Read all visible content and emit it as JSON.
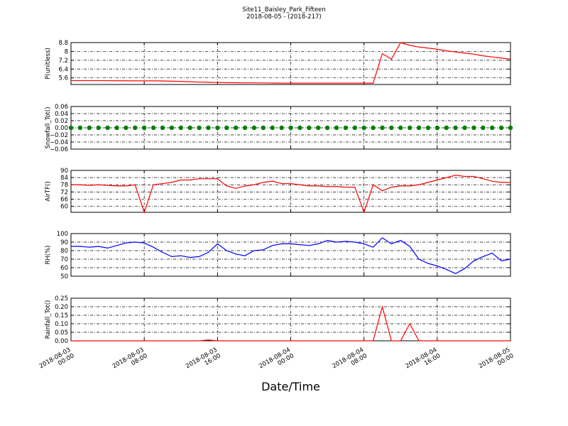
{
  "title": "Site11_Baisley_Park_Fifteen",
  "subtitle": "2018-08-05 - (2018-217)",
  "chart_data": [
    {
      "type": "line",
      "ylabel": "P(unitless)",
      "color": "#ff0000",
      "x": [
        "2018-08-03 00:00",
        "2018-08-03 01:00",
        "2018-08-03 02:00",
        "2018-08-03 03:00",
        "2018-08-03 04:00",
        "2018-08-03 05:00",
        "2018-08-03 06:00",
        "2018-08-03 07:00",
        "2018-08-03 08:00",
        "2018-08-03 09:00",
        "2018-08-03 10:00",
        "2018-08-03 11:00",
        "2018-08-03 12:00",
        "2018-08-03 13:00",
        "2018-08-03 14:00",
        "2018-08-03 15:00",
        "2018-08-03 16:00",
        "2018-08-03 17:00",
        "2018-08-03 18:00",
        "2018-08-03 19:00",
        "2018-08-03 20:00",
        "2018-08-03 21:00",
        "2018-08-03 22:00",
        "2018-08-03 23:00",
        "2018-08-04 00:00",
        "2018-08-04 01:00",
        "2018-08-04 02:00",
        "2018-08-04 03:00",
        "2018-08-04 04:00",
        "2018-08-04 05:00",
        "2018-08-04 06:00",
        "2018-08-04 07:00",
        "2018-08-04 08:00",
        "2018-08-04 09:00",
        "2018-08-04 10:00",
        "2018-08-04 11:00",
        "2018-08-04 12:00",
        "2018-08-04 13:00",
        "2018-08-04 14:00",
        "2018-08-04 15:00",
        "2018-08-04 16:00",
        "2018-08-04 17:00",
        "2018-08-04 18:00",
        "2018-08-04 19:00",
        "2018-08-04 20:00",
        "2018-08-04 21:00",
        "2018-08-04 22:00",
        "2018-08-04 23:00",
        "2018-08-05 00:00"
      ],
      "values": [
        5.35,
        5.35,
        5.35,
        5.35,
        5.35,
        5.34,
        5.34,
        5.33,
        5.33,
        5.33,
        5.32,
        5.3,
        5.28,
        5.25,
        5.22,
        5.2,
        5.18,
        5.17,
        5.16,
        5.15,
        5.15,
        5.14,
        5.13,
        5.12,
        5.12,
        5.12,
        5.12,
        5.12,
        5.12,
        5.12,
        5.12,
        5.12,
        5.12,
        5.12,
        7.8,
        7.3,
        8.8,
        8.55,
        8.4,
        8.3,
        8.2,
        8.05,
        7.95,
        7.85,
        7.75,
        7.6,
        7.5,
        7.4,
        7.3
      ],
      "xlim": [
        "2018-08-03 00:00",
        "2018-08-05 00:00"
      ],
      "xticks": [
        "2018-08-03 00:00",
        "2018-08-03 08:00",
        "2018-08-03 16:00",
        "2018-08-04 00:00",
        "2018-08-04 08:00",
        "2018-08-04 16:00",
        "2018-08-05 00:00"
      ],
      "ylim": [
        5.0,
        8.8
      ],
      "yticks": [
        5.6,
        6.4,
        7.2,
        8.0,
        8.8
      ],
      "grid": true
    },
    {
      "type": "scatter",
      "ylabel": "Snowfall_Tot()",
      "color": "#008000",
      "x": [
        "2018-08-03 00:00",
        "2018-08-03 01:00",
        "2018-08-03 02:00",
        "2018-08-03 03:00",
        "2018-08-03 04:00",
        "2018-08-03 05:00",
        "2018-08-03 06:00",
        "2018-08-03 07:00",
        "2018-08-03 08:00",
        "2018-08-03 09:00",
        "2018-08-03 10:00",
        "2018-08-03 11:00",
        "2018-08-03 12:00",
        "2018-08-03 13:00",
        "2018-08-03 14:00",
        "2018-08-03 15:00",
        "2018-08-03 16:00",
        "2018-08-03 17:00",
        "2018-08-03 18:00",
        "2018-08-03 19:00",
        "2018-08-03 20:00",
        "2018-08-03 21:00",
        "2018-08-03 22:00",
        "2018-08-03 23:00",
        "2018-08-04 00:00",
        "2018-08-04 01:00",
        "2018-08-04 02:00",
        "2018-08-04 03:00",
        "2018-08-04 04:00",
        "2018-08-04 05:00",
        "2018-08-04 06:00",
        "2018-08-04 07:00",
        "2018-08-04 08:00",
        "2018-08-04 09:00",
        "2018-08-04 10:00",
        "2018-08-04 11:00",
        "2018-08-04 12:00",
        "2018-08-04 13:00",
        "2018-08-04 14:00",
        "2018-08-04 15:00",
        "2018-08-04 16:00",
        "2018-08-04 17:00",
        "2018-08-04 18:00",
        "2018-08-04 19:00",
        "2018-08-04 20:00",
        "2018-08-04 21:00",
        "2018-08-04 22:00",
        "2018-08-04 23:00",
        "2018-08-05 00:00"
      ],
      "values": [
        0,
        0,
        0,
        0,
        0,
        0,
        0,
        0,
        0,
        0,
        0,
        0,
        0,
        0,
        0,
        0,
        0,
        0,
        0,
        0,
        0,
        0,
        0,
        0,
        0,
        0,
        0,
        0,
        0,
        0,
        0,
        0,
        0,
        0,
        0,
        0,
        0,
        0,
        0,
        0,
        0,
        0,
        0,
        0,
        0,
        0,
        0,
        0,
        0
      ],
      "xlim": [
        "2018-08-03 00:00",
        "2018-08-05 00:00"
      ],
      "xticks": [
        "2018-08-03 00:00",
        "2018-08-03 08:00",
        "2018-08-03 16:00",
        "2018-08-04 00:00",
        "2018-08-04 08:00",
        "2018-08-04 16:00",
        "2018-08-05 00:00"
      ],
      "ylim": [
        -0.06,
        0.06
      ],
      "yticks": [
        {
          "value": -0.06,
          "label": "−0.06"
        },
        {
          "value": -0.04,
          "label": "−0.04"
        },
        {
          "value": -0.02,
          "label": "−0.02"
        },
        {
          "value": 0,
          "label": "0.00"
        },
        0.02,
        0.04,
        0.06
      ],
      "grid": true
    },
    {
      "type": "line",
      "ylabel": "AirTF()",
      "color": "#ff0000",
      "x": [
        "2018-08-03 00:00",
        "2018-08-03 01:00",
        "2018-08-03 02:00",
        "2018-08-03 03:00",
        "2018-08-03 04:00",
        "2018-08-03 05:00",
        "2018-08-03 06:00",
        "2018-08-03 07:00",
        "2018-08-03 08:00",
        "2018-08-03 09:00",
        "2018-08-03 10:00",
        "2018-08-03 11:00",
        "2018-08-03 12:00",
        "2018-08-03 13:00",
        "2018-08-03 14:00",
        "2018-08-03 15:00",
        "2018-08-03 16:00",
        "2018-08-03 17:00",
        "2018-08-03 18:00",
        "2018-08-03 19:00",
        "2018-08-03 20:00",
        "2018-08-03 21:00",
        "2018-08-03 22:00",
        "2018-08-03 23:00",
        "2018-08-04 00:00",
        "2018-08-04 01:00",
        "2018-08-04 02:00",
        "2018-08-04 03:00",
        "2018-08-04 04:00",
        "2018-08-04 05:00",
        "2018-08-04 06:00",
        "2018-08-04 07:00",
        "2018-08-04 08:00",
        "2018-08-04 09:00",
        "2018-08-04 10:00",
        "2018-08-04 11:00",
        "2018-08-04 12:00",
        "2018-08-04 13:00",
        "2018-08-04 14:00",
        "2018-08-04 15:00",
        "2018-08-04 16:00",
        "2018-08-04 17:00",
        "2018-08-04 18:00",
        "2018-08-04 19:00",
        "2018-08-04 20:00",
        "2018-08-04 21:00",
        "2018-08-04 22:00",
        "2018-08-04 23:00",
        "2018-08-05 00:00"
      ],
      "values": [
        78,
        78,
        77.5,
        78,
        77.5,
        77,
        77,
        78,
        55,
        78,
        79,
        80,
        82,
        82,
        83,
        83,
        83,
        77,
        75,
        77,
        78,
        80,
        81,
        79,
        79,
        78,
        77,
        77,
        76.5,
        76.5,
        76,
        76,
        55,
        78,
        73,
        76,
        77,
        77,
        78,
        80,
        82,
        84,
        86,
        85,
        85,
        83,
        81,
        80,
        80
      ],
      "xlim": [
        "2018-08-03 00:00",
        "2018-08-05 00:00"
      ],
      "xticks": [
        "2018-08-03 00:00",
        "2018-08-03 08:00",
        "2018-08-03 16:00",
        "2018-08-04 00:00",
        "2018-08-04 08:00",
        "2018-08-04 16:00",
        "2018-08-05 00:00"
      ],
      "ylim": [
        55,
        90
      ],
      "yticks": [
        60,
        66,
        72,
        78,
        84,
        90
      ],
      "grid": true
    },
    {
      "type": "line",
      "ylabel": "RH(%)",
      "color": "#0000ff",
      "x": [
        "2018-08-03 00:00",
        "2018-08-03 01:00",
        "2018-08-03 02:00",
        "2018-08-03 03:00",
        "2018-08-03 04:00",
        "2018-08-03 05:00",
        "2018-08-03 06:00",
        "2018-08-03 07:00",
        "2018-08-03 08:00",
        "2018-08-03 09:00",
        "2018-08-03 10:00",
        "2018-08-03 11:00",
        "2018-08-03 12:00",
        "2018-08-03 13:00",
        "2018-08-03 14:00",
        "2018-08-03 15:00",
        "2018-08-03 16:00",
        "2018-08-03 17:00",
        "2018-08-03 18:00",
        "2018-08-03 19:00",
        "2018-08-03 20:00",
        "2018-08-03 21:00",
        "2018-08-03 22:00",
        "2018-08-03 23:00",
        "2018-08-04 00:00",
        "2018-08-04 01:00",
        "2018-08-04 02:00",
        "2018-08-04 03:00",
        "2018-08-04 04:00",
        "2018-08-04 05:00",
        "2018-08-04 06:00",
        "2018-08-04 07:00",
        "2018-08-04 08:00",
        "2018-08-04 09:00",
        "2018-08-04 10:00",
        "2018-08-04 11:00",
        "2018-08-04 12:00",
        "2018-08-04 13:00",
        "2018-08-04 14:00",
        "2018-08-04 15:00",
        "2018-08-04 16:00",
        "2018-08-04 17:00",
        "2018-08-04 18:00",
        "2018-08-04 19:00",
        "2018-08-04 20:00",
        "2018-08-04 21:00",
        "2018-08-04 22:00",
        "2018-08-04 23:00",
        "2018-08-05 00:00"
      ],
      "values": [
        85,
        85,
        84,
        85,
        83,
        86,
        89,
        90,
        89,
        84,
        78,
        73,
        74,
        72,
        73,
        78,
        88,
        80,
        76,
        74,
        80,
        81,
        86,
        88,
        88,
        87,
        86,
        88,
        92,
        90,
        91,
        90,
        88,
        84,
        95,
        88,
        92,
        85,
        70,
        65,
        62,
        58,
        53,
        59,
        68,
        73,
        77,
        68,
        70
      ],
      "xlim": [
        "2018-08-03 00:00",
        "2018-08-05 00:00"
      ],
      "xticks": [
        "2018-08-03 00:00",
        "2018-08-03 08:00",
        "2018-08-03 16:00",
        "2018-08-04 00:00",
        "2018-08-04 08:00",
        "2018-08-04 16:00",
        "2018-08-05 00:00"
      ],
      "ylim": [
        50,
        100
      ],
      "yticks": [
        50,
        60,
        70,
        80,
        90,
        100
      ],
      "grid": true
    },
    {
      "type": "line",
      "ylabel": "Rainfall_Tot()",
      "xlabel": "Date/Time",
      "color": "#ff0000",
      "x": [
        "2018-08-03 00:00",
        "2018-08-03 01:00",
        "2018-08-03 02:00",
        "2018-08-03 03:00",
        "2018-08-03 04:00",
        "2018-08-03 05:00",
        "2018-08-03 06:00",
        "2018-08-03 07:00",
        "2018-08-03 08:00",
        "2018-08-03 09:00",
        "2018-08-03 10:00",
        "2018-08-03 11:00",
        "2018-08-03 12:00",
        "2018-08-03 13:00",
        "2018-08-03 14:00",
        "2018-08-03 15:00",
        "2018-08-03 16:00",
        "2018-08-03 17:00",
        "2018-08-03 18:00",
        "2018-08-03 19:00",
        "2018-08-03 20:00",
        "2018-08-03 21:00",
        "2018-08-03 22:00",
        "2018-08-03 23:00",
        "2018-08-04 00:00",
        "2018-08-04 01:00",
        "2018-08-04 02:00",
        "2018-08-04 03:00",
        "2018-08-04 04:00",
        "2018-08-04 05:00",
        "2018-08-04 06:00",
        "2018-08-04 07:00",
        "2018-08-04 08:00",
        "2018-08-04 09:00",
        "2018-08-04 10:00",
        "2018-08-04 11:00",
        "2018-08-04 12:00",
        "2018-08-04 13:00",
        "2018-08-04 14:00",
        "2018-08-04 15:00",
        "2018-08-04 16:00",
        "2018-08-04 17:00",
        "2018-08-04 18:00",
        "2018-08-04 19:00",
        "2018-08-04 20:00",
        "2018-08-04 21:00",
        "2018-08-04 22:00",
        "2018-08-04 23:00",
        "2018-08-05 00:00"
      ],
      "values": [
        0,
        0,
        0,
        0,
        0,
        0,
        0,
        0,
        0,
        0,
        0,
        0,
        0,
        0,
        0,
        0.005,
        0,
        0,
        0,
        0,
        0,
        0,
        0,
        0,
        0,
        0,
        0,
        0,
        0,
        0,
        0,
        0,
        0,
        0,
        0.2,
        0,
        0,
        0.1,
        0,
        0,
        0,
        0,
        0,
        0,
        0,
        0,
        0,
        0,
        0
      ],
      "xlim": [
        "2018-08-03 00:00",
        "2018-08-05 00:00"
      ],
      "xticks": [
        {
          "value": "2018-08-03 00:00",
          "label": "2018-08-03\n00:00"
        },
        {
          "value": "2018-08-03 08:00",
          "label": "2018-08-03\n08:00"
        },
        {
          "value": "2018-08-03 16:00",
          "label": "2018-08-03\n16:00"
        },
        {
          "value": "2018-08-04 00:00",
          "label": "2018-08-04\n00:00"
        },
        {
          "value": "2018-08-04 08:00",
          "label": "2018-08-04\n08:00"
        },
        {
          "value": "2018-08-04 16:00",
          "label": "2018-08-04\n16:00"
        },
        {
          "value": "2018-08-05 00:00",
          "label": "2018-08-05\n00:00"
        }
      ],
      "ylim": [
        0,
        0.25
      ],
      "yticks": [
        {
          "value": 0,
          "label": "0.00"
        },
        {
          "value": 0.05,
          "label": "0.05"
        },
        {
          "value": 0.1,
          "label": "0.10"
        },
        {
          "value": 0.15,
          "label": "0.15"
        },
        {
          "value": 0.2,
          "label": "0.20"
        },
        0.25
      ],
      "grid": true
    }
  ]
}
